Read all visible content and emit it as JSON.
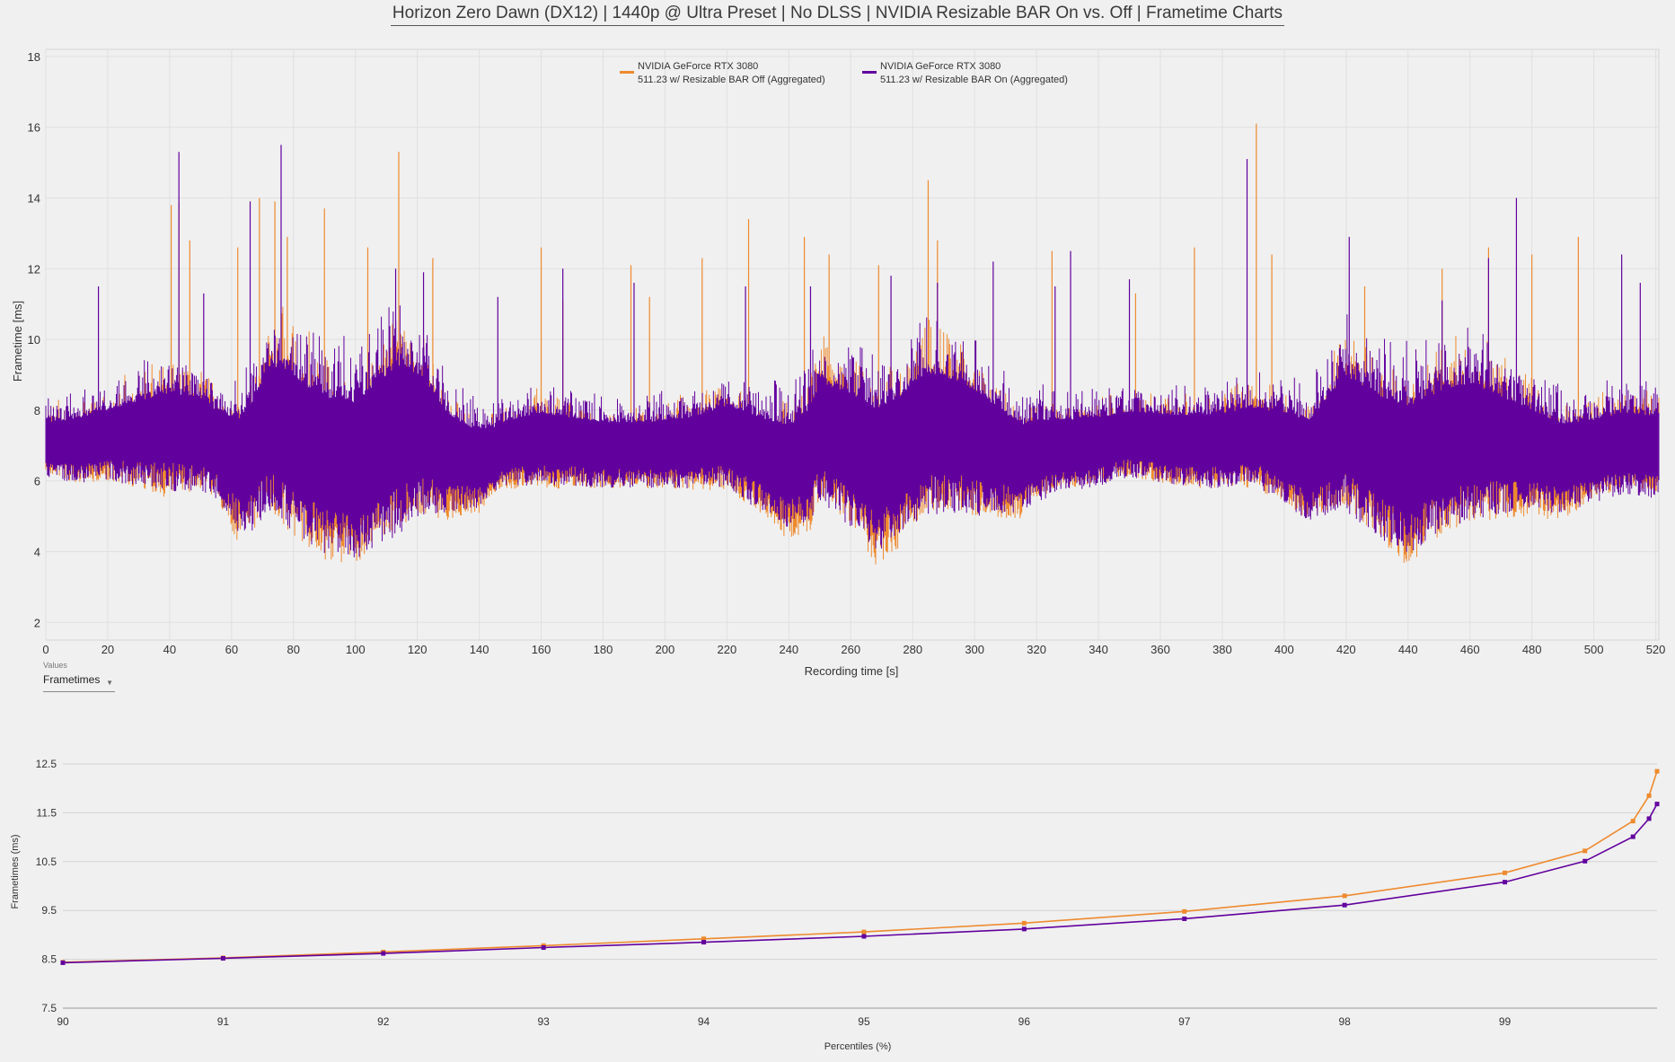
{
  "title": "Horizon Zero Dawn (DX12) | 1440p @ Ultra Preset | No DLSS | NVIDIA Resizable BAR On vs. Off | Frametime Charts",
  "colors": {
    "bar_off": "#ee8a2e",
    "bar_on": "#62009e",
    "background": "#f0f0f0",
    "grid": "#dedede"
  },
  "values_control": {
    "caption": "Values",
    "selected": "Frametimes",
    "icon": "chevron-down-icon"
  },
  "chart_data": [
    {
      "type": "line",
      "xlabel": "Recording time [s]",
      "ylabel": "Frametime [ms]",
      "xlim": [
        0,
        521
      ],
      "ylim": [
        1.5,
        18.2
      ],
      "xticks": [
        "0",
        "20",
        "40",
        "60",
        "80",
        "100",
        "120",
        "140",
        "160",
        "180",
        "200",
        "220",
        "240",
        "260",
        "280",
        "300",
        "320",
        "340",
        "360",
        "380",
        "400",
        "420",
        "440",
        "460",
        "480",
        "500",
        "520"
      ],
      "yticks": [
        "2",
        "4",
        "6",
        "8",
        "10",
        "12",
        "14",
        "16",
        "18"
      ],
      "grid": true,
      "legend_position": "top-center",
      "series": [
        {
          "name": "NVIDIA GeForce RTX 3080 511.23 w/ Resizable BAR Off (Aggregated)",
          "legend_line1": "NVIDIA GeForce RTX 3080",
          "legend_line2": "511.23 w/ Resizable BAR Off (Aggregated)",
          "profile": [
            [
              0,
              7.1
            ],
            [
              10,
              7.0
            ],
            [
              20,
              7.2
            ],
            [
              30,
              7.3
            ],
            [
              40,
              7.3
            ],
            [
              50,
              7.4
            ],
            [
              55,
              7.0
            ],
            [
              62,
              6.0
            ],
            [
              67,
              6.6
            ],
            [
              72,
              7.9
            ],
            [
              80,
              7.2
            ],
            [
              90,
              6.4
            ],
            [
              100,
              6.1
            ],
            [
              108,
              7.1
            ],
            [
              115,
              7.6
            ],
            [
              122,
              7.4
            ],
            [
              130,
              6.6
            ],
            [
              140,
              6.3
            ],
            [
              148,
              6.9
            ],
            [
              160,
              7.1
            ],
            [
              170,
              6.9
            ],
            [
              180,
              6.8
            ],
            [
              190,
              6.8
            ],
            [
              200,
              6.9
            ],
            [
              210,
              7.0
            ],
            [
              220,
              7.2
            ],
            [
              232,
              6.5
            ],
            [
              240,
              6.1
            ],
            [
              247,
              6.6
            ],
            [
              250,
              7.7
            ],
            [
              260,
              7.0
            ],
            [
              268,
              6.0
            ],
            [
              275,
              6.5
            ],
            [
              285,
              7.6
            ],
            [
              295,
              7.5
            ],
            [
              305,
              6.9
            ],
            [
              315,
              6.3
            ],
            [
              320,
              6.8
            ],
            [
              330,
              6.9
            ],
            [
              340,
              7.0
            ],
            [
              350,
              7.2
            ],
            [
              360,
              7.1
            ],
            [
              375,
              7.0
            ],
            [
              390,
              7.2
            ],
            [
              400,
              6.9
            ],
            [
              408,
              6.4
            ],
            [
              420,
              7.6
            ],
            [
              430,
              6.9
            ],
            [
              440,
              6.1
            ],
            [
              448,
              6.9
            ],
            [
              460,
              7.3
            ],
            [
              470,
              7.1
            ],
            [
              480,
              6.8
            ],
            [
              490,
              6.4
            ],
            [
              500,
              6.8
            ],
            [
              510,
              7.1
            ],
            [
              521,
              7.0
            ]
          ],
          "amplitude": [
            [
              0,
              0.9
            ],
            [
              20,
              1.2
            ],
            [
              40,
              1.8
            ],
            [
              55,
              1.5
            ],
            [
              65,
              1.8
            ],
            [
              75,
              2.8
            ],
            [
              100,
              2.5
            ],
            [
              115,
              3.0
            ],
            [
              130,
              1.7
            ],
            [
              145,
              1.1
            ],
            [
              160,
              1.3
            ],
            [
              180,
              1.0
            ],
            [
              200,
              1.1
            ],
            [
              215,
              1.4
            ],
            [
              230,
              1.5
            ],
            [
              245,
              2.0
            ],
            [
              265,
              2.4
            ],
            [
              285,
              2.5
            ],
            [
              300,
              2.2
            ],
            [
              315,
              1.4
            ],
            [
              330,
              1.1
            ],
            [
              350,
              1.1
            ],
            [
              370,
              1.2
            ],
            [
              390,
              1.4
            ],
            [
              410,
              1.6
            ],
            [
              420,
              2.3
            ],
            [
              440,
              2.6
            ],
            [
              460,
              2.5
            ],
            [
              480,
              1.8
            ],
            [
              500,
              1.3
            ],
            [
              521,
              1.3
            ]
          ],
          "spikes": [
            [
              40.5,
              13.8
            ],
            [
              43,
              13.9
            ],
            [
              46.5,
              12.8
            ],
            [
              62,
              12.6
            ],
            [
              69,
              14.0
            ],
            [
              74,
              13.9
            ],
            [
              78,
              12.9
            ],
            [
              90,
              13.7
            ],
            [
              104,
              12.6
            ],
            [
              114,
              15.3
            ],
            [
              125,
              12.3
            ],
            [
              160,
              12.6
            ],
            [
              167,
              11.1
            ],
            [
              189,
              12.1
            ],
            [
              195,
              11.2
            ],
            [
              212,
              12.3
            ],
            [
              227,
              13.4
            ],
            [
              245,
              12.9
            ],
            [
              253,
              12.4
            ],
            [
              269,
              12.1
            ],
            [
              285,
              14.5
            ],
            [
              288,
              12.8
            ],
            [
              325,
              12.5
            ],
            [
              352,
              11.3
            ],
            [
              371,
              12.6
            ],
            [
              391,
              16.1
            ],
            [
              396,
              12.4
            ],
            [
              426,
              11.5
            ],
            [
              451,
              12.0
            ],
            [
              466,
              12.6
            ],
            [
              480,
              12.4
            ],
            [
              495,
              12.9
            ]
          ]
        },
        {
          "name": "NVIDIA GeForce RTX 3080 511.23 w/ Resizable BAR On (Aggregated)",
          "legend_line1": "NVIDIA GeForce RTX 3080",
          "legend_line2": "511.23 w/ Resizable BAR On (Aggregated)",
          "profile": [
            [
              0,
              7.1
            ],
            [
              10,
              7.1
            ],
            [
              20,
              7.3
            ],
            [
              30,
              7.4
            ],
            [
              40,
              7.5
            ],
            [
              50,
              7.4
            ],
            [
              55,
              7.1
            ],
            [
              62,
              6.6
            ],
            [
              67,
              6.9
            ],
            [
              72,
              7.8
            ],
            [
              80,
              7.3
            ],
            [
              90,
              6.8
            ],
            [
              100,
              6.6
            ],
            [
              108,
              7.2
            ],
            [
              115,
              7.6
            ],
            [
              122,
              7.5
            ],
            [
              130,
              6.9
            ],
            [
              140,
              6.6
            ],
            [
              148,
              7.0
            ],
            [
              160,
              7.2
            ],
            [
              170,
              7.1
            ],
            [
              180,
              7.0
            ],
            [
              190,
              7.0
            ],
            [
              200,
              7.0
            ],
            [
              210,
              7.1
            ],
            [
              220,
              7.3
            ],
            [
              232,
              6.8
            ],
            [
              240,
              6.5
            ],
            [
              247,
              6.9
            ],
            [
              250,
              7.6
            ],
            [
              260,
              7.1
            ],
            [
              268,
              6.6
            ],
            [
              275,
              6.9
            ],
            [
              285,
              7.6
            ],
            [
              295,
              7.5
            ],
            [
              305,
              7.1
            ],
            [
              315,
              6.7
            ],
            [
              320,
              6.9
            ],
            [
              330,
              7.0
            ],
            [
              340,
              7.1
            ],
            [
              350,
              7.3
            ],
            [
              360,
              7.2
            ],
            [
              375,
              7.1
            ],
            [
              390,
              7.3
            ],
            [
              400,
              7.0
            ],
            [
              408,
              6.7
            ],
            [
              420,
              7.6
            ],
            [
              430,
              7.0
            ],
            [
              440,
              6.6
            ],
            [
              448,
              7.0
            ],
            [
              460,
              7.4
            ],
            [
              470,
              7.2
            ],
            [
              480,
              7.0
            ],
            [
              490,
              6.7
            ],
            [
              500,
              6.9
            ],
            [
              510,
              7.1
            ],
            [
              521,
              7.0
            ]
          ],
          "amplitude": [
            [
              0,
              1.0
            ],
            [
              20,
              1.3
            ],
            [
              40,
              1.8
            ],
            [
              55,
              1.6
            ],
            [
              65,
              2.2
            ],
            [
              75,
              2.8
            ],
            [
              100,
              2.9
            ],
            [
              115,
              3.1
            ],
            [
              130,
              1.8
            ],
            [
              145,
              1.2
            ],
            [
              160,
              1.3
            ],
            [
              180,
              1.2
            ],
            [
              200,
              1.2
            ],
            [
              215,
              1.4
            ],
            [
              230,
              1.7
            ],
            [
              245,
              2.0
            ],
            [
              265,
              2.6
            ],
            [
              285,
              2.6
            ],
            [
              300,
              2.3
            ],
            [
              315,
              1.6
            ],
            [
              330,
              1.3
            ],
            [
              350,
              1.2
            ],
            [
              370,
              1.3
            ],
            [
              390,
              1.4
            ],
            [
              410,
              1.9
            ],
            [
              420,
              2.5
            ],
            [
              440,
              2.7
            ],
            [
              460,
              2.5
            ],
            [
              480,
              1.8
            ],
            [
              500,
              1.5
            ],
            [
              521,
              1.5
            ]
          ],
          "spikes": [
            [
              17,
              11.5
            ],
            [
              43,
              15.3
            ],
            [
              51,
              11.3
            ],
            [
              66,
              13.9
            ],
            [
              76,
              15.5
            ],
            [
              113,
              12.0
            ],
            [
              122,
              11.9
            ],
            [
              146,
              11.2
            ],
            [
              167,
              12.0
            ],
            [
              190,
              11.6
            ],
            [
              226,
              11.5
            ],
            [
              247,
              11.5
            ],
            [
              273,
              11.8
            ],
            [
              288,
              11.6
            ],
            [
              306,
              12.2
            ],
            [
              326,
              11.5
            ],
            [
              331,
              12.5
            ],
            [
              350,
              11.7
            ],
            [
              388,
              15.1
            ],
            [
              421,
              12.9
            ],
            [
              451,
              11.1
            ],
            [
              466,
              12.3
            ],
            [
              475,
              14.0
            ],
            [
              509,
              12.4
            ],
            [
              515,
              11.6
            ]
          ]
        }
      ]
    },
    {
      "type": "line",
      "xlabel": "Percentiles (%)",
      "ylabel": "Frametimes (ms)",
      "xlim": [
        90,
        100
      ],
      "ylim": [
        7.5,
        12.5
      ],
      "xticks": [
        "90",
        "91",
        "92",
        "93",
        "94",
        "95",
        "96",
        "97",
        "98",
        "99"
      ],
      "yticks": [
        "7.5",
        "8.5",
        "9.5",
        "10.5",
        "11.5",
        "12.5"
      ],
      "grid": true,
      "series": [
        {
          "name": "NVIDIA GeForce RTX 3080 511.23 w/ Resizable BAR Off (Aggregated)",
          "x": [
            90,
            91,
            92,
            93,
            94,
            95,
            96,
            97,
            98,
            99,
            99.5,
            99.8,
            99.9,
            99.95
          ],
          "y": [
            8.44,
            8.53,
            8.65,
            8.78,
            8.92,
            9.06,
            9.24,
            9.48,
            9.8,
            10.27,
            10.72,
            11.33,
            11.85,
            12.35
          ]
        },
        {
          "name": "NVIDIA GeForce RTX 3080 511.23 w/ Resizable BAR On (Aggregated)",
          "x": [
            90,
            91,
            92,
            93,
            94,
            95,
            96,
            97,
            98,
            99,
            99.5,
            99.8,
            99.9,
            99.95
          ],
          "y": [
            8.43,
            8.52,
            8.62,
            8.74,
            8.85,
            8.97,
            9.12,
            9.33,
            9.61,
            10.08,
            10.51,
            11.01,
            11.38,
            11.68
          ]
        }
      ]
    }
  ]
}
